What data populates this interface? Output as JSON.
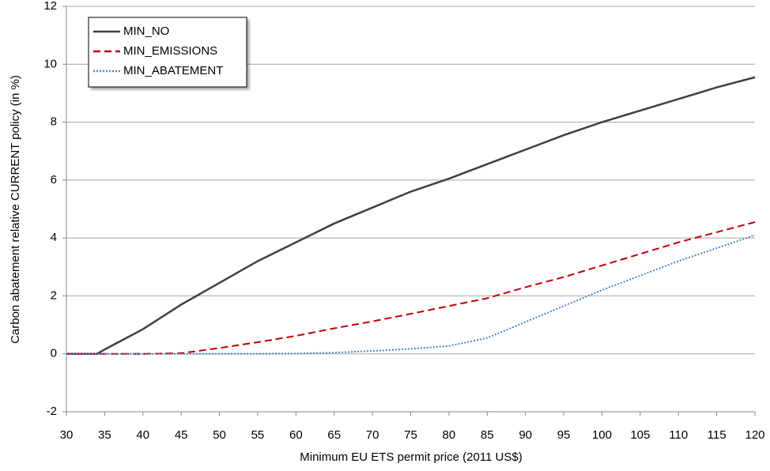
{
  "chart_data": {
    "type": "line",
    "x_label": "Minimum EU ETS permit price (2011 US$)",
    "y_label": "Carbon abatement relative CURRENT policy (in %)",
    "x": [
      30,
      34,
      35,
      40,
      45,
      50,
      55,
      60,
      65,
      70,
      75,
      80,
      85,
      90,
      95,
      100,
      105,
      110,
      115,
      120
    ],
    "series": [
      {
        "name": "MIN_NO",
        "color": "#404040",
        "dash": "solid",
        "values": [
          0,
          0,
          0.15,
          0.85,
          1.7,
          2.45,
          3.2,
          3.85,
          4.5,
          5.05,
          5.6,
          6.05,
          6.55,
          7.05,
          7.55,
          8.0,
          8.4,
          8.8,
          9.2,
          9.55
        ]
      },
      {
        "name": "MIN_EMISSIONS",
        "color": "#c00000",
        "dash": "dashed",
        "values": [
          0,
          0,
          0,
          0,
          0.02,
          0.2,
          0.4,
          0.62,
          0.88,
          1.12,
          1.38,
          1.65,
          1.92,
          2.3,
          2.65,
          3.05,
          3.45,
          3.85,
          4.2,
          4.55
        ]
      },
      {
        "name": "MIN_ABATEMENT",
        "color": "#4a86c8",
        "dash": "dotted",
        "values": [
          0,
          0,
          0,
          0,
          0,
          0,
          0,
          0.01,
          0.04,
          0.1,
          0.17,
          0.27,
          0.55,
          1.1,
          1.65,
          2.2,
          2.7,
          3.2,
          3.65,
          4.1
        ]
      }
    ],
    "xlim": [
      30,
      120
    ],
    "xticks": [
      30,
      35,
      40,
      45,
      50,
      55,
      60,
      65,
      70,
      75,
      80,
      85,
      90,
      95,
      100,
      105,
      110,
      115,
      120
    ],
    "ylim": [
      -2,
      12
    ],
    "yticks": [
      -2,
      0,
      2,
      4,
      6,
      8,
      10,
      12
    ],
    "grid": true,
    "legend": "upper-left"
  }
}
